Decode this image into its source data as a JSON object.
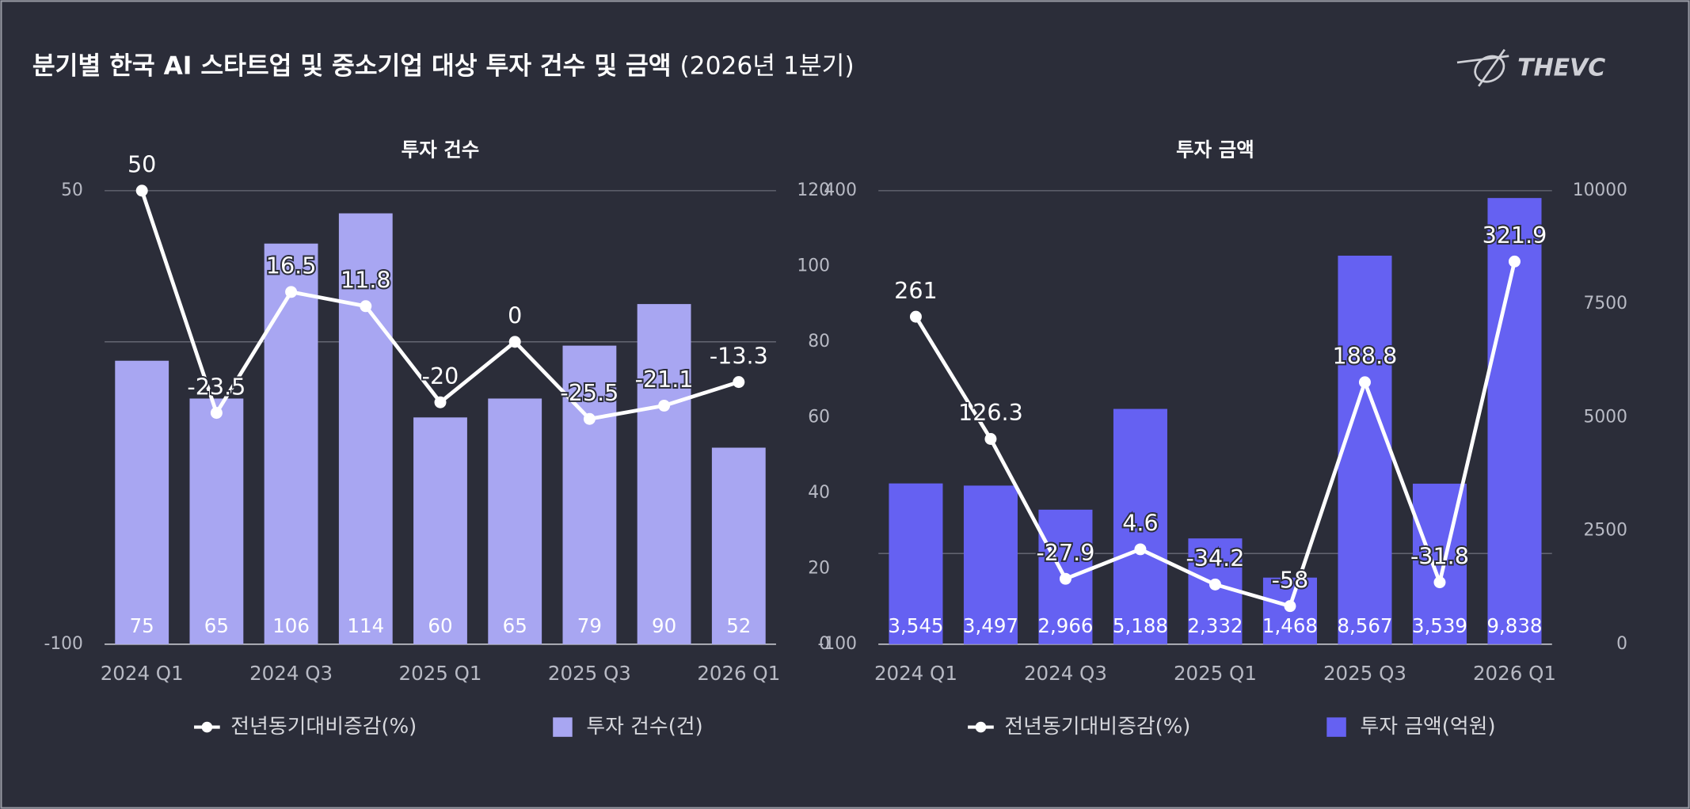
{
  "title": "분기별 한국 AI 스타트업 및 중소기업 대상 투자 건수 및 금액",
  "subtitle": "(2026년 1분기)",
  "logo": "THEVC",
  "chart_data": [
    {
      "type": "bar_line",
      "title": "투자 건수",
      "categories": [
        "2024 Q1",
        null,
        "2024 Q3",
        null,
        "2025 Q1",
        null,
        "2025 Q3",
        null,
        "2026 Q1"
      ],
      "series": [
        {
          "name": "전년동기대비증감(%)",
          "type": "line",
          "color": "#ffffff",
          "values": [
            50,
            -23.5,
            16.5,
            11.8,
            -20,
            0,
            -25.5,
            -21.1,
            -13.3
          ]
        },
        {
          "name": "투자 건수(건)",
          "type": "bar",
          "axis": "y2",
          "color": "#a8a6f2",
          "values": [
            75,
            65,
            106,
            114,
            60,
            65,
            79,
            90,
            52
          ]
        }
      ],
      "ylim": [
        -100,
        50
      ],
      "yticks": [
        -100,
        50
      ],
      "y2lim": [
        0,
        120
      ],
      "grid": true
    },
    {
      "type": "bar_line",
      "title": "투자 금액",
      "categories": [
        "2024 Q1",
        null,
        "2024 Q3",
        null,
        "2025 Q1",
        null,
        "2025 Q3",
        null,
        "2026 Q1"
      ],
      "series": [
        {
          "name": "전년동기대비증감(%)",
          "type": "line",
          "color": "#ffffff",
          "values": [
            261,
            126.3,
            -27.9,
            4.6,
            -34.2,
            -58,
            188.8,
            -31.8,
            321.9
          ]
        },
        {
          "name": "투자 금액(억원)",
          "type": "bar",
          "axis": "y2",
          "color": "#6561f2",
          "values": [
            3545,
            3497,
            2966,
            5188,
            2332,
            1468,
            8567,
            3539,
            9838
          ],
          "value_labels": [
            "3,545",
            "3,497",
            "2,966",
            "5,188",
            "2,332",
            "1,468",
            "8,567",
            "3,539",
            "9,838"
          ]
        }
      ],
      "ylim": [
        -100,
        400
      ],
      "yticks": [
        -100,
        400
      ],
      "y2lim": [
        0,
        10000
      ],
      "y2ticks": [
        0,
        2500,
        5000,
        7500,
        10000
      ],
      "y3lim": [
        0,
        120
      ],
      "y3ticks": [
        0,
        20,
        40,
        60,
        80,
        100,
        120
      ],
      "grid": true
    }
  ]
}
